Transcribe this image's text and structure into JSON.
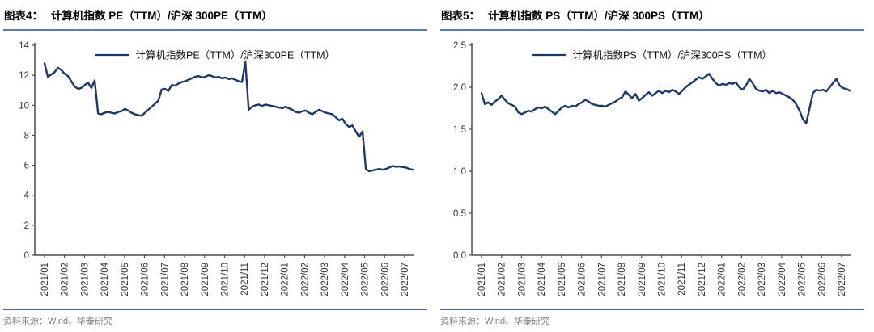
{
  "panels": [
    {
      "figure_label": "图表4：",
      "title": "计算机指数 PE（TTM）/沪深 300PE（TTM）",
      "source": "资料来源：Wind、华泰研究"
    },
    {
      "figure_label": "图表5：",
      "title": "计算机指数 PS（TTM）/沪深 300PS（TTM）",
      "source": "资料来源：Wind、华泰研究"
    }
  ],
  "colors": {
    "line": "#1f3864",
    "title_underline": "#5b7da6",
    "source_divider": "#44679a",
    "source_text": "#7f7f7f",
    "axis": "#4d4d4d"
  },
  "chart_data": [
    {
      "type": "line",
      "title": "计算机指数 PE（TTM）/沪深 300PE（TTM）",
      "legend": [
        "计算机指数PE（TTM）/沪深300PE（TTM）"
      ],
      "legend_position": "top-center",
      "grid": false,
      "xlabel": "",
      "ylabel": "",
      "ylim": [
        0,
        14
      ],
      "yticks": [
        0,
        2,
        4,
        6,
        8,
        10,
        12,
        14
      ],
      "y_tick_format": "int",
      "x_tick_labels": [
        "2021/01",
        "2021/02",
        "2021/03",
        "2021/04",
        "2021/05",
        "2021/06",
        "2021/07",
        "2021/08",
        "2021/09",
        "2021/10",
        "2021/11",
        "2021/12",
        "2022/01",
        "2022/02",
        "2022/03",
        "2022/04",
        "2022/05",
        "2022/06",
        "2022/07"
      ],
      "line_color": "#1f3864",
      "axis_color": "#4d4d4d",
      "series": [
        {
          "name": "计算机指数PE（TTM）/沪深300PE（TTM）",
          "values": [
            12.8,
            11.9,
            12.05,
            12.2,
            12.5,
            12.35,
            12.1,
            11.95,
            11.6,
            11.25,
            11.1,
            11.15,
            11.35,
            11.5,
            11.15,
            11.65,
            9.45,
            9.4,
            9.5,
            9.55,
            9.5,
            9.45,
            9.55,
            9.6,
            9.75,
            9.65,
            9.5,
            9.4,
            9.35,
            9.3,
            9.5,
            9.7,
            9.9,
            10.1,
            10.3,
            11.05,
            11.1,
            10.95,
            11.35,
            11.3,
            11.45,
            11.55,
            11.6,
            11.7,
            11.8,
            11.9,
            11.95,
            11.85,
            11.9,
            12.0,
            11.95,
            11.85,
            11.9,
            11.8,
            11.85,
            11.75,
            11.8,
            11.7,
            11.6,
            11.55,
            12.9,
            9.7,
            9.9,
            10.0,
            10.05,
            9.95,
            10.05,
            10.0,
            9.95,
            9.9,
            9.85,
            9.8,
            9.9,
            9.8,
            9.7,
            9.55,
            9.5,
            9.6,
            9.65,
            9.5,
            9.4,
            9.55,
            9.7,
            9.6,
            9.5,
            9.45,
            9.4,
            9.2,
            9.0,
            9.1,
            8.75,
            8.55,
            8.65,
            8.25,
            7.9,
            8.25,
            5.75,
            5.6,
            5.65,
            5.7,
            5.75,
            5.7,
            5.75,
            5.85,
            5.95,
            5.9,
            5.92,
            5.88,
            5.85,
            5.75,
            5.7
          ]
        }
      ]
    },
    {
      "type": "line",
      "title": "计算机指数 PS（TTM）/沪深 300PS（TTM）",
      "legend": [
        "计算机指数PS（TTM）/沪深300PS（TTM）"
      ],
      "legend_position": "top-center",
      "grid": false,
      "xlabel": "",
      "ylabel": "",
      "ylim": [
        0,
        2.5
      ],
      "yticks": [
        0,
        0.5,
        1.0,
        1.5,
        2.0,
        2.5
      ],
      "y_tick_format": "fixed1",
      "x_tick_labels": [
        "2021/01",
        "2021/02",
        "2021/03",
        "2021/04",
        "2021/05",
        "2021/06",
        "2021/07",
        "2021/08",
        "2021/09",
        "2021/10",
        "2021/11",
        "2021/12",
        "2022/01",
        "2022/02",
        "2022/03",
        "2022/04",
        "2022/05",
        "2022/06",
        "2022/07"
      ],
      "line_color": "#1f3864",
      "axis_color": "#4d4d4d",
      "series": [
        {
          "name": "计算机指数PS（TTM）/沪深300PS（TTM）",
          "values": [
            1.93,
            1.8,
            1.82,
            1.79,
            1.83,
            1.86,
            1.9,
            1.85,
            1.81,
            1.79,
            1.77,
            1.7,
            1.68,
            1.7,
            1.72,
            1.71,
            1.74,
            1.76,
            1.75,
            1.77,
            1.74,
            1.71,
            1.68,
            1.72,
            1.76,
            1.78,
            1.76,
            1.78,
            1.77,
            1.8,
            1.82,
            1.85,
            1.83,
            1.8,
            1.79,
            1.78,
            1.78,
            1.77,
            1.79,
            1.81,
            1.83,
            1.86,
            1.88,
            1.95,
            1.91,
            1.87,
            1.92,
            1.84,
            1.87,
            1.91,
            1.94,
            1.9,
            1.93,
            1.96,
            1.93,
            1.96,
            1.94,
            1.97,
            1.95,
            1.92,
            1.96,
            2.0,
            2.03,
            2.06,
            2.09,
            2.12,
            2.1,
            2.13,
            2.16,
            2.1,
            2.05,
            2.02,
            2.04,
            2.03,
            2.05,
            2.04,
            2.06,
            2.0,
            1.97,
            2.02,
            2.1,
            2.05,
            1.98,
            1.96,
            1.95,
            1.97,
            1.93,
            1.96,
            1.93,
            1.94,
            1.92,
            1.9,
            1.88,
            1.85,
            1.8,
            1.72,
            1.62,
            1.57,
            1.75,
            1.93,
            1.97,
            1.96,
            1.97,
            1.95,
            2.0,
            2.05,
            2.1,
            2.02,
            1.99,
            1.98,
            1.96
          ]
        }
      ]
    }
  ]
}
